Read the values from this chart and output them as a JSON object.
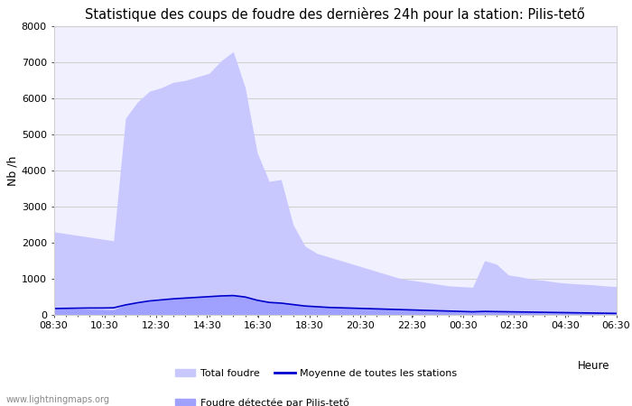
{
  "title": "Statistique des coups de foudre des dernières 24h pour la station: Pilis-tető",
  "ylabel": "Nb /h",
  "xlabel_legend": "Heure",
  "watermark": "www.lightningmaps.org",
  "ylim": [
    0,
    8000
  ],
  "yticks": [
    0,
    1000,
    2000,
    3000,
    4000,
    5000,
    6000,
    7000,
    8000
  ],
  "x_tick_labels": [
    "08:30",
    "10:30",
    "12:30",
    "14:30",
    "16:30",
    "18:30",
    "20:30",
    "22:30",
    "00:30",
    "02:30",
    "04:30",
    "06:30"
  ],
  "total_foudre": [
    2300,
    2250,
    2200,
    2150,
    2100,
    2050,
    5450,
    5900,
    6200,
    6300,
    6450,
    6500,
    6600,
    6700,
    7050,
    7300,
    6300,
    4500,
    3700,
    3750,
    2500,
    1900,
    1700,
    1600,
    1500,
    1400,
    1300,
    1200,
    1100,
    1000,
    950,
    900,
    850,
    800,
    780,
    760,
    1500,
    1400,
    1100,
    1050,
    980,
    950,
    900,
    870,
    850,
    830,
    800,
    780
  ],
  "local_foudre": [
    200,
    180,
    160,
    150,
    140,
    130,
    280,
    320,
    370,
    400,
    440,
    460,
    480,
    500,
    520,
    540,
    500,
    420,
    360,
    340,
    290,
    250,
    230,
    210,
    200,
    190,
    180,
    170,
    160,
    150,
    140,
    130,
    120,
    110,
    100,
    90,
    100,
    95,
    90,
    85,
    80,
    75,
    70,
    65,
    60,
    55,
    50,
    45
  ],
  "moyenne": [
    170,
    175,
    180,
    185,
    185,
    190,
    270,
    330,
    380,
    410,
    440,
    460,
    480,
    500,
    520,
    530,
    490,
    400,
    340,
    320,
    280,
    240,
    220,
    200,
    190,
    180,
    170,
    160,
    150,
    140,
    130,
    120,
    110,
    100,
    90,
    80,
    90,
    85,
    80,
    75,
    70,
    65,
    60,
    55,
    50,
    45,
    40,
    35
  ],
  "total_color": "#c8c8ff",
  "local_color": "#a0a0ff",
  "line_color": "#0000cc",
  "bg_color": "#ffffff",
  "plot_bg_color": "#f0f0ff",
  "grid_color": "#d0d0d0",
  "title_fontsize": 10.5,
  "legend_total": "Total foudre",
  "legend_moyenne": "Moyenne de toutes les stations",
  "legend_local": "Foudre détectée par Pilis-tető"
}
